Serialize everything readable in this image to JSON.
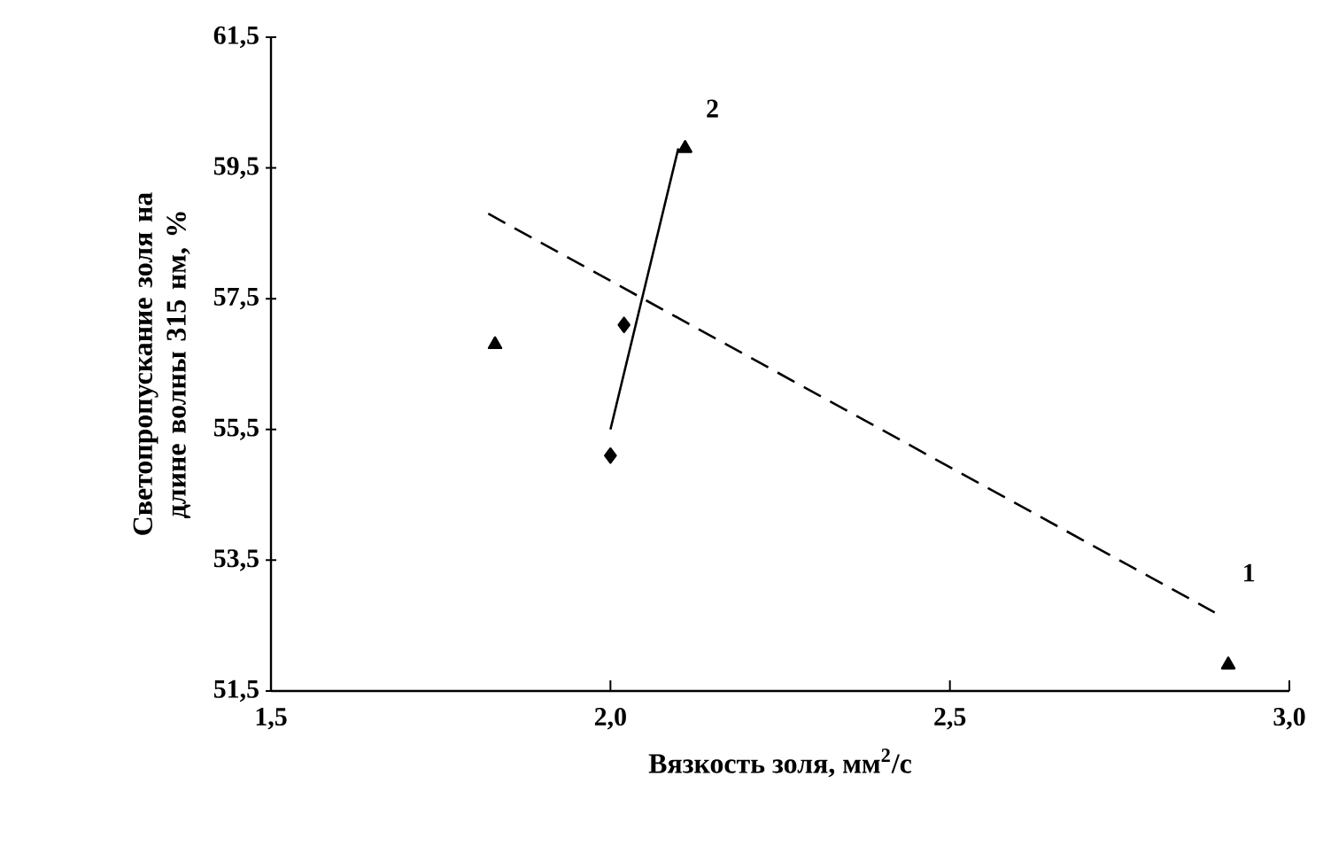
{
  "chart_data": {
    "type": "scatter",
    "xlabel": "Вязкость  золя, мм$^{2}$/с",
    "ylabel": "Светопропускание золя на длине волны 315 нм, %",
    "xlim": [
      1.5,
      3.0
    ],
    "xticks": [
      {
        "value": 1.5,
        "label": "1,5"
      },
      {
        "value": 2.0,
        "label": "2,0"
      },
      {
        "value": 2.5,
        "label": "2,5"
      },
      {
        "value": 3.0,
        "label": "3,0"
      }
    ],
    "ylim": [
      51.5,
      61.5
    ],
    "yticks": [
      {
        "value": 51.5,
        "label": "51,5"
      },
      {
        "value": 53.5,
        "label": "53,5"
      },
      {
        "value": 55.5,
        "label": "55,5"
      },
      {
        "value": 57.5,
        "label": "57,5"
      },
      {
        "value": 59.5,
        "label": "59,5"
      },
      {
        "value": 61.5,
        "label": "61,5"
      }
    ],
    "series": [
      {
        "type": "line",
        "name": "1",
        "color": "#000000",
        "marker": "none",
        "line_style": "dashed",
        "x": [
          1.82,
          2.89
        ],
        "values": [
          58.8,
          52.7
        ]
      },
      {
        "type": "line",
        "name": "2",
        "color": "#000000",
        "marker": "none",
        "line_style": "solid",
        "x": [
          2.0,
          2.1
        ],
        "values": [
          55.5,
          59.8
        ]
      },
      {
        "color": "#000000",
        "marker": "diamond",
        "x": [
          2.0,
          2.02
        ],
        "values": [
          55.1,
          57.1
        ]
      },
      {
        "color": "#000000",
        "marker": "triangle",
        "x": [
          1.83,
          2.11,
          2.91
        ],
        "values": [
          56.8,
          59.8,
          51.9
        ]
      }
    ]
  }
}
